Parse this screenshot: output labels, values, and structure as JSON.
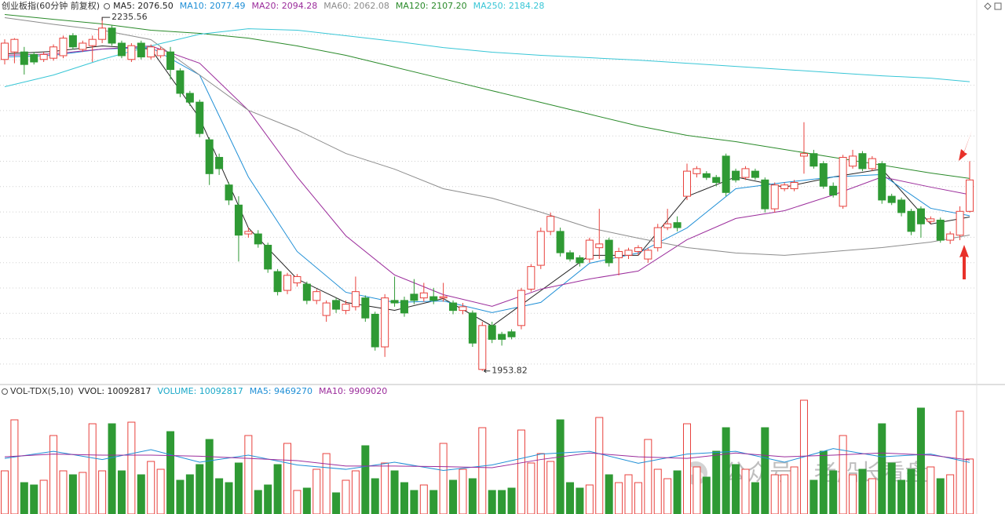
{
  "chart_data": [
    {
      "type": "candlestick",
      "title": "创业板指(60分钟 前复权)",
      "ylim": [
        1943,
        2240
      ],
      "up_color": "#e8413c",
      "down_color": "#2f9a34",
      "open": [
        2202,
        2208,
        2208,
        2206,
        2202,
        2203,
        2205,
        2221,
        2210,
        2213,
        2218,
        2227,
        2215,
        2202,
        2215,
        2204,
        2205,
        2208,
        2193,
        2175,
        2168,
        2138,
        2124,
        2102,
        2086,
        2063,
        2063,
        2054,
        2033,
        2018,
        2024,
        2023,
        2010,
        1998,
        2010,
        2002,
        2005,
        2012,
        1999,
        1973,
        2010,
        2010,
        2015,
        2012,
        2013,
        2012,
        2008,
        2002,
        2000,
        1955,
        1990,
        1983,
        1985,
        1990,
        2019,
        2038,
        2065,
        2065,
        2048,
        2044,
        2043,
        2052,
        2058,
        2044,
        2046,
        2049,
        2043,
        2052,
        2068,
        2072,
        2093,
        2111,
        2111,
        2108,
        2125,
        2113,
        2108,
        2113,
        2106,
        2083,
        2099,
        2099,
        2125,
        2127,
        2119,
        2101,
        2085,
        2117,
        2127,
        2115,
        2119,
        2093,
        2090,
        2081,
        2083,
        2073,
        2074,
        2058,
        2062,
        2081
      ],
      "high": [
        2218,
        2219,
        2212,
        2208,
        2208,
        2214,
        2221,
        2223,
        2217,
        2221,
        2235.56,
        2229,
        2217,
        2215,
        2217,
        2214,
        2212,
        2212,
        2195,
        2177,
        2170,
        2140,
        2127,
        2104,
        2093,
        2068,
        2066,
        2056,
        2035,
        2032,
        2031,
        2025,
        2019,
        2010,
        2012,
        2010,
        2029,
        2014,
        2001,
        2015,
        2029,
        2013,
        2027,
        2024,
        2020,
        2024,
        2010,
        2008,
        2002,
        1993,
        1993,
        1985,
        1987,
        2020,
        2039,
        2068,
        2080,
        2068,
        2050,
        2046,
        2060,
        2083,
        2060,
        2052,
        2052,
        2054,
        2052,
        2071,
        2083,
        2077,
        2119,
        2117,
        2113,
        2110,
        2127,
        2115,
        2117,
        2115,
        2108,
        2104,
        2104,
        2106,
        2152,
        2130,
        2121,
        2104,
        2126,
        2130,
        2129,
        2125,
        2121,
        2095,
        2092,
        2083,
        2085,
        2077,
        2076,
        2065,
        2085,
        2121
      ],
      "low": [
        2198,
        2199,
        2190,
        2198,
        2200,
        2201,
        2203,
        2210,
        2208,
        2200,
        2215,
        2213,
        2203,
        2200,
        2202,
        2202,
        2203,
        2186,
        2172,
        2165,
        2140,
        2102,
        2110,
        2086,
        2041,
        2060,
        2052,
        2032,
        2014,
        2015,
        2021,
        2007,
        2007,
        1993,
        2000,
        1999,
        2002,
        1993,
        1970,
        1965,
        2005,
        1997,
        2007,
        2009,
        2007,
        2009,
        1999,
        1999,
        1973,
        1953.82,
        1976,
        1974,
        1979,
        1987,
        2017,
        2035,
        2062,
        2045,
        2041,
        2037,
        2040,
        2043,
        2037,
        2030,
        2043,
        2046,
        2040,
        2049,
        2066,
        2065,
        2090,
        2108,
        2106,
        2101,
        2093,
        2104,
        2106,
        2106,
        2080,
        2080,
        2097,
        2097,
        2111,
        2115,
        2099,
        2092,
        2083,
        2115,
        2113,
        2113,
        2087,
        2086,
        2077,
        2062,
        2060,
        2071,
        2056,
        2055,
        2058,
        2080
      ],
      "close": [
        2215,
        2218,
        2198,
        2200,
        2206,
        2212,
        2219,
        2212,
        2215,
        2218,
        2227,
        2215,
        2205,
        2213,
        2204,
        2212,
        2210,
        2194,
        2175,
        2168,
        2143,
        2111,
        2115,
        2090,
        2062,
        2065,
        2055,
        2035,
        2017,
        2030,
        2029,
        2010,
        2017,
        2008,
        2003,
        2007,
        2017,
        1996,
        1973,
        2012,
        2008,
        2000,
        2010,
        2016,
        2010,
        2013,
        2002,
        2005,
        1976,
        1990,
        1979,
        1979,
        1981,
        2018,
        2037,
        2065,
        2077,
        2048,
        2043,
        2040,
        2058,
        2055,
        2040,
        2049,
        2050,
        2052,
        2050,
        2068,
        2071,
        2068,
        2113,
        2115,
        2108,
        2104,
        2096,
        2106,
        2115,
        2108,
        2083,
        2102,
        2102,
        2104,
        2127,
        2117,
        2101,
        2094,
        2124,
        2125,
        2115,
        2123,
        2090,
        2088,
        2080,
        2065,
        2071,
        2075,
        2058,
        2063,
        2081,
        2106
      ],
      "series": [
        {
          "name": "MA5: 2076.50",
          "color": "#222222",
          "x": [
            0,
            5,
            10,
            15,
            20,
            25,
            30,
            35,
            40,
            45,
            50,
            55,
            60,
            65,
            70,
            75,
            80,
            85,
            90,
            95,
            99
          ],
          "values": [
            2206.5,
            2208.4,
            2212.8,
            2210.3,
            2155.3,
            2067.8,
            2027.1,
            2008.4,
            2002.1,
            2011.5,
            1989.6,
            2017.8,
            2045.9,
            2045.9,
            2092.8,
            2108.4,
            2100.3,
            2108.4,
            2114.6,
            2070.9,
            2076.5
          ]
        },
        {
          "name": "MA10: 2077.49",
          "color": "#1f8fd6",
          "x": [
            0,
            5,
            10,
            15,
            20,
            25,
            30,
            35,
            40,
            45,
            50,
            55,
            60,
            65,
            70,
            75,
            80,
            85,
            90,
            95,
            99
          ],
          "values": [
            2204,
            2205.3,
            2210.3,
            2211.5,
            2189.6,
            2108.4,
            2049,
            2016.5,
            2008.4,
            2009.6,
            2000.3,
            2008.4,
            2039.6,
            2047.8,
            2067.8,
            2099,
            2104,
            2108.4,
            2110.3,
            2083.4,
            2077.49
          ]
        },
        {
          "name": "MA20: 2094.28",
          "color": "#9b2c9b",
          "x": [
            0,
            5,
            10,
            15,
            20,
            25,
            30,
            35,
            40,
            45,
            50,
            55,
            60,
            65,
            70,
            75,
            80,
            85,
            90,
            95,
            99
          ],
          "values": [
            2205.3,
            2206.5,
            2210.3,
            2212.8,
            2199,
            2161.5,
            2108.4,
            2061.5,
            2030.3,
            2014.6,
            2005.3,
            2019,
            2027.1,
            2033.4,
            2058.4,
            2075.3,
            2081.5,
            2094,
            2108.4,
            2100.3,
            2094.28
          ]
        },
        {
          "name": "MA60: 2062.08",
          "color": "#8c8c8c",
          "x": [
            0,
            5,
            10,
            15,
            20,
            25,
            30,
            35,
            40,
            45,
            50,
            55,
            60,
            65,
            70,
            75,
            80,
            85,
            90,
            95,
            99
          ],
          "values": [
            2235.3,
            2230,
            2225.3,
            2217.8,
            2189.6,
            2161.5,
            2145.9,
            2127.1,
            2114.6,
            2099,
            2091.5,
            2080.3,
            2067.8,
            2059.6,
            2052.1,
            2047.8,
            2045.9,
            2049,
            2052.1,
            2056.5,
            2062.08
          ]
        },
        {
          "name": "MA120: 2107.20",
          "color": "#2a8a2a",
          "x": [
            0,
            5,
            10,
            15,
            20,
            25,
            30,
            35,
            40,
            45,
            50,
            55,
            60,
            65,
            70,
            75,
            80,
            85,
            90,
            95,
            99
          ],
          "values": [
            2237.8,
            2234,
            2230.3,
            2225.3,
            2222.8,
            2219,
            2212.8,
            2205.3,
            2195.9,
            2186.5,
            2177.1,
            2167.8,
            2158.4,
            2149,
            2141.5,
            2136.5,
            2130.3,
            2124,
            2117.8,
            2111.5,
            2107.2
          ]
        },
        {
          "name": "MA250: 2184.28",
          "color": "#38c6d6",
          "x": [
            0,
            5,
            10,
            15,
            20,
            25,
            30,
            35,
            40,
            45,
            50,
            55,
            60,
            65,
            70,
            75,
            80,
            85,
            90,
            95,
            99
          ],
          "values": [
            2180.3,
            2189.6,
            2202.1,
            2212.8,
            2222.1,
            2226.5,
            2225.3,
            2220.9,
            2216.5,
            2211.5,
            2207.8,
            2205.3,
            2203.4,
            2201.5,
            2199,
            2196.5,
            2194,
            2191.5,
            2189,
            2187.1,
            2184.28
          ]
        }
      ]
    },
    {
      "type": "bar",
      "title": "VOL-TDX(5,10)",
      "subtitle": "VVOL: 10092817",
      "name": "VOLUME: 10092817",
      "name_color": "#1aa8c8",
      "ylim": [
        0,
        21600000
      ],
      "up_color": "#e8413c",
      "down_color": "#2f9a34",
      "values": [
        7920000,
        17280000,
        5760000,
        5328000,
        6192000,
        14400000,
        7920000,
        7200000,
        7632000,
        16560000,
        7920000,
        16560000,
        7920000,
        16848000,
        7200000,
        9648000,
        8208000,
        15120000,
        6192000,
        7200000,
        9072000,
        13680000,
        6480000,
        5760000,
        9360000,
        14400000,
        4320000,
        5328000,
        9072000,
        12960000,
        4320000,
        4752000,
        8208000,
        11088000,
        3888000,
        6192000,
        7920000,
        12528000,
        6480000,
        9360000,
        7920000,
        5760000,
        4320000,
        5328000,
        4320000,
        12960000,
        6192000,
        8208000,
        6480000,
        15840000,
        4320000,
        4320000,
        4752000,
        15408000,
        9360000,
        11088000,
        9648000,
        17280000,
        5760000,
        4752000,
        5328000,
        17712000,
        7200000,
        5760000,
        7200000,
        5760000,
        13680000,
        8208000,
        6480000,
        7920000,
        16560000,
        8640000,
        6768000,
        11520000,
        15840000,
        9072000,
        8208000,
        5760000,
        15840000,
        7200000,
        7200000,
        8640000,
        20880000,
        6192000,
        11520000,
        7920000,
        14400000,
        7200000,
        8208000,
        6480000,
        16560000,
        9360000,
        6192000,
        8208000,
        19440000,
        8640000,
        6480000,
        7200000,
        18864000,
        10092817
      ],
      "series": [
        {
          "name": "MA5: 9469270",
          "color": "#1f8fd6",
          "x": [
            0,
            5,
            10,
            15,
            20,
            25,
            30,
            35,
            40,
            45,
            50,
            55,
            60,
            65,
            70,
            75,
            80,
            85,
            90,
            95,
            99
          ],
          "values": [
            10200000,
            11500000,
            10000000,
            11800000,
            9500000,
            10800000,
            9000000,
            8200000,
            9500000,
            8000000,
            9000000,
            11000000,
            11500000,
            9300000,
            11000000,
            11500000,
            9500000,
            12000000,
            10500000,
            11000000,
            9469270
          ]
        },
        {
          "name": "MA10: 9909020",
          "color": "#9b2c9b",
          "x": [
            0,
            5,
            10,
            15,
            20,
            25,
            30,
            35,
            40,
            45,
            50,
            55,
            60,
            65,
            70,
            75,
            80,
            85,
            90,
            95,
            99
          ],
          "values": [
            10500000,
            11000000,
            10800000,
            10800000,
            10600000,
            10200000,
            9800000,
            8800000,
            8800000,
            8700000,
            8500000,
            10000000,
            11200000,
            10500000,
            10200000,
            11200000,
            10500000,
            10800000,
            11200000,
            10800000,
            9909020
          ]
        }
      ]
    }
  ],
  "watermark": "公众号 · 老船长看盘"
}
